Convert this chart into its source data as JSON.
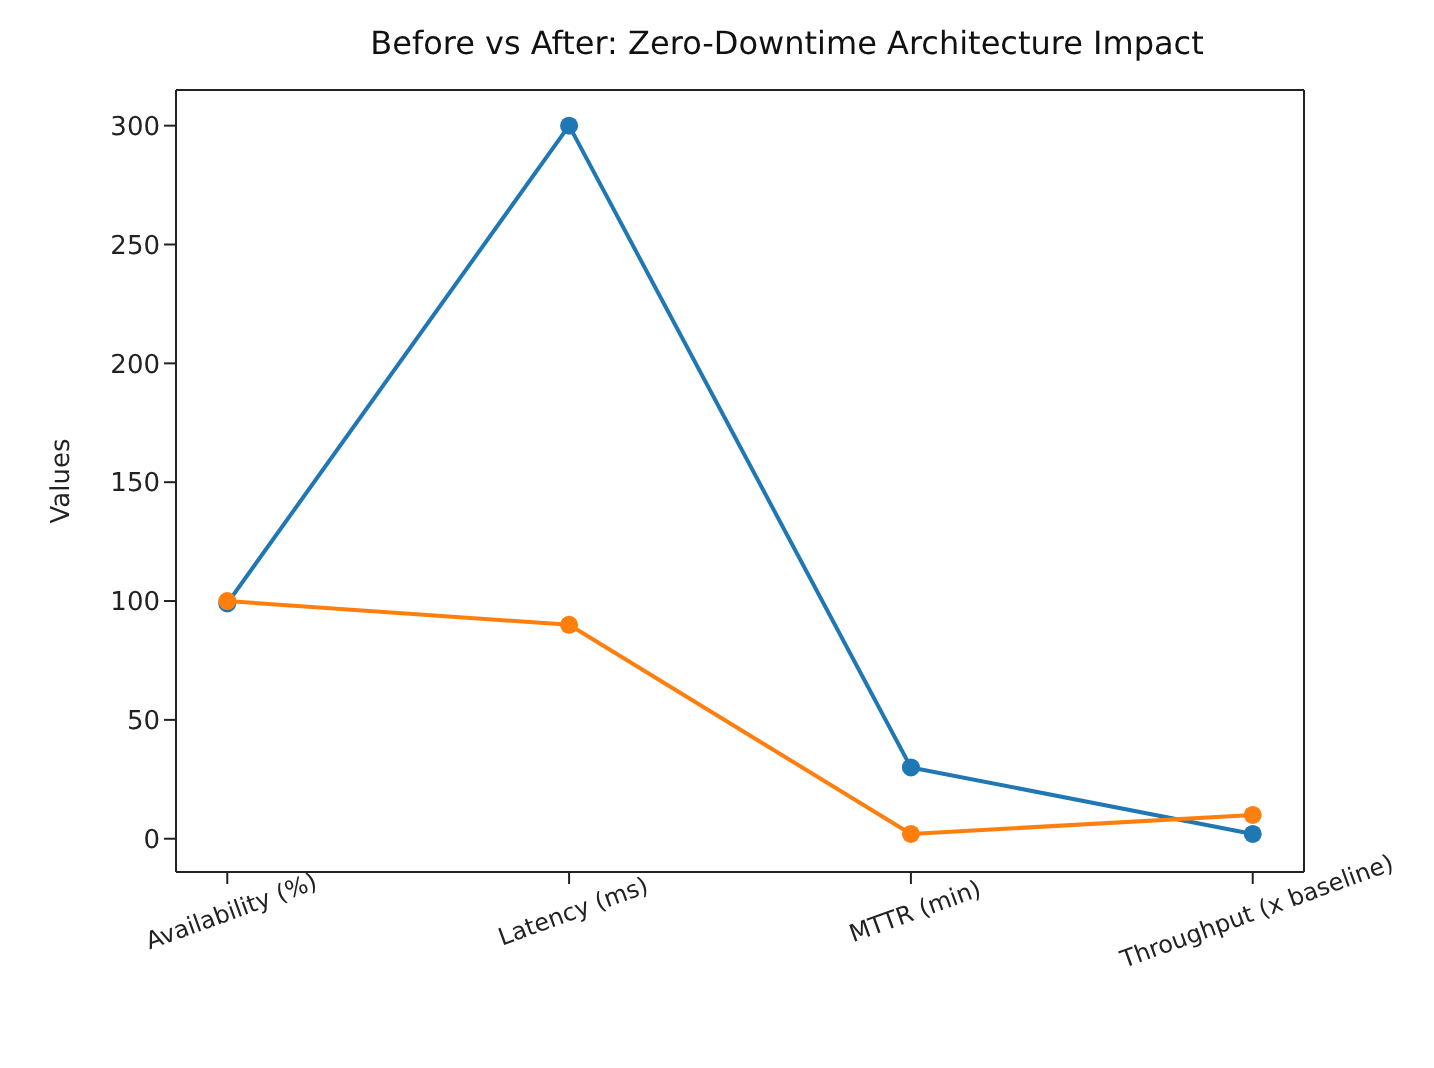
{
  "chart_data": {
    "type": "line",
    "title": "Before vs After: Zero-Downtime Architecture Impact",
    "ylabel": "Values",
    "categories": [
      "Availability (%)",
      "Latency (ms)",
      "MTTR (min)",
      "Throughput (x baseline)"
    ],
    "series": [
      {
        "color": "#1f77b4",
        "values": [
          99,
          300,
          30,
          2
        ]
      },
      {
        "color": "#ff7f0e",
        "values": [
          100,
          90,
          2,
          10
        ]
      }
    ],
    "ylim": [
      -14,
      315
    ],
    "yticks": [
      0,
      50,
      100,
      150,
      200,
      250,
      300
    ],
    "marker": "circle",
    "grid": false,
    "legend": false
  }
}
